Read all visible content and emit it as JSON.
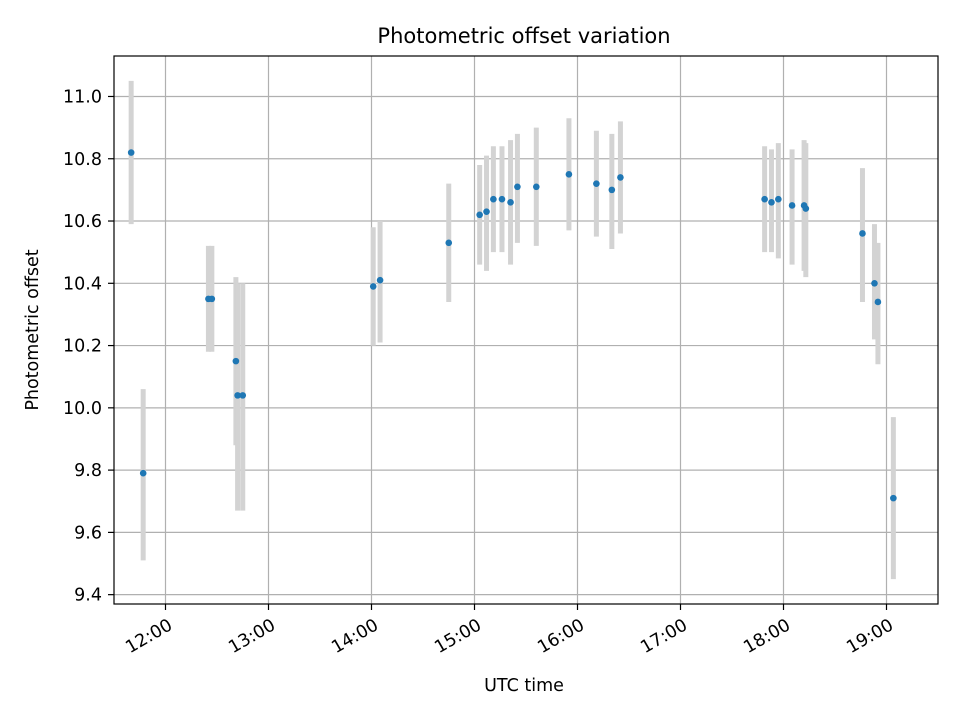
{
  "chart_data": {
    "type": "scatter",
    "title": "Photometric offset variation",
    "xlabel": "UTC time",
    "ylabel": "Photometric offset",
    "grid": true,
    "legend": "none",
    "xlim": [
      "11:30",
      "19:30"
    ],
    "ylim": [
      9.37,
      11.13
    ],
    "x_ticks": [
      "12:00",
      "13:00",
      "14:00",
      "15:00",
      "16:00",
      "17:00",
      "18:00",
      "19:00"
    ],
    "y_ticks": [
      "9.4",
      "9.6",
      "9.8",
      "10.0",
      "10.2",
      "10.4",
      "10.6",
      "10.8",
      "11.0"
    ],
    "colors": {
      "point": "#1f77b4",
      "errorbar": "#d3d3d3",
      "grid": "#b0b0b0"
    },
    "series": [
      {
        "points": [
          {
            "x": "11:40",
            "y": 10.82,
            "ylow": 10.59,
            "yhigh": 11.05
          },
          {
            "x": "11:47",
            "y": 9.79,
            "ylow": 9.51,
            "yhigh": 10.06
          },
          {
            "x": "12:25",
            "y": 10.35,
            "ylow": 10.18,
            "yhigh": 10.52
          },
          {
            "x": "12:27",
            "y": 10.35,
            "ylow": 10.18,
            "yhigh": 10.52
          },
          {
            "x": "12:41",
            "y": 10.15,
            "ylow": 9.88,
            "yhigh": 10.42
          },
          {
            "x": "12:42",
            "y": 10.04,
            "ylow": 9.67,
            "yhigh": 10.4
          },
          {
            "x": "12:45",
            "y": 10.04,
            "ylow": 9.67,
            "yhigh": 10.4
          },
          {
            "x": "14:01",
            "y": 10.39,
            "ylow": 10.2,
            "yhigh": 10.58
          },
          {
            "x": "14:05",
            "y": 10.41,
            "ylow": 10.21,
            "yhigh": 10.6
          },
          {
            "x": "14:45",
            "y": 10.53,
            "ylow": 10.34,
            "yhigh": 10.72
          },
          {
            "x": "15:03",
            "y": 10.62,
            "ylow": 10.46,
            "yhigh": 10.78
          },
          {
            "x": "15:07",
            "y": 10.63,
            "ylow": 10.44,
            "yhigh": 10.81
          },
          {
            "x": "15:11",
            "y": 10.67,
            "ylow": 10.5,
            "yhigh": 10.84
          },
          {
            "x": "15:16",
            "y": 10.67,
            "ylow": 10.5,
            "yhigh": 10.84
          },
          {
            "x": "15:21",
            "y": 10.66,
            "ylow": 10.46,
            "yhigh": 10.86
          },
          {
            "x": "15:25",
            "y": 10.71,
            "ylow": 10.53,
            "yhigh": 10.88
          },
          {
            "x": "15:36",
            "y": 10.71,
            "ylow": 10.52,
            "yhigh": 10.9
          },
          {
            "x": "15:55",
            "y": 10.75,
            "ylow": 10.57,
            "yhigh": 10.93
          },
          {
            "x": "16:11",
            "y": 10.72,
            "ylow": 10.55,
            "yhigh": 10.89
          },
          {
            "x": "16:20",
            "y": 10.7,
            "ylow": 10.51,
            "yhigh": 10.88
          },
          {
            "x": "16:25",
            "y": 10.74,
            "ylow": 10.56,
            "yhigh": 10.92
          },
          {
            "x": "17:49",
            "y": 10.67,
            "ylow": 10.5,
            "yhigh": 10.84
          },
          {
            "x": "17:53",
            "y": 10.66,
            "ylow": 10.5,
            "yhigh": 10.83
          },
          {
            "x": "17:57",
            "y": 10.67,
            "ylow": 10.48,
            "yhigh": 10.85
          },
          {
            "x": "18:05",
            "y": 10.65,
            "ylow": 10.46,
            "yhigh": 10.83
          },
          {
            "x": "18:12",
            "y": 10.65,
            "ylow": 10.44,
            "yhigh": 10.86
          },
          {
            "x": "18:13",
            "y": 10.64,
            "ylow": 10.42,
            "yhigh": 10.85
          },
          {
            "x": "18:46",
            "y": 10.56,
            "ylow": 10.34,
            "yhigh": 10.77
          },
          {
            "x": "18:53",
            "y": 10.4,
            "ylow": 10.22,
            "yhigh": 10.59
          },
          {
            "x": "18:55",
            "y": 10.34,
            "ylow": 10.14,
            "yhigh": 10.53
          },
          {
            "x": "19:04",
            "y": 9.71,
            "ylow": 9.45,
            "yhigh": 9.97
          }
        ]
      }
    ]
  }
}
